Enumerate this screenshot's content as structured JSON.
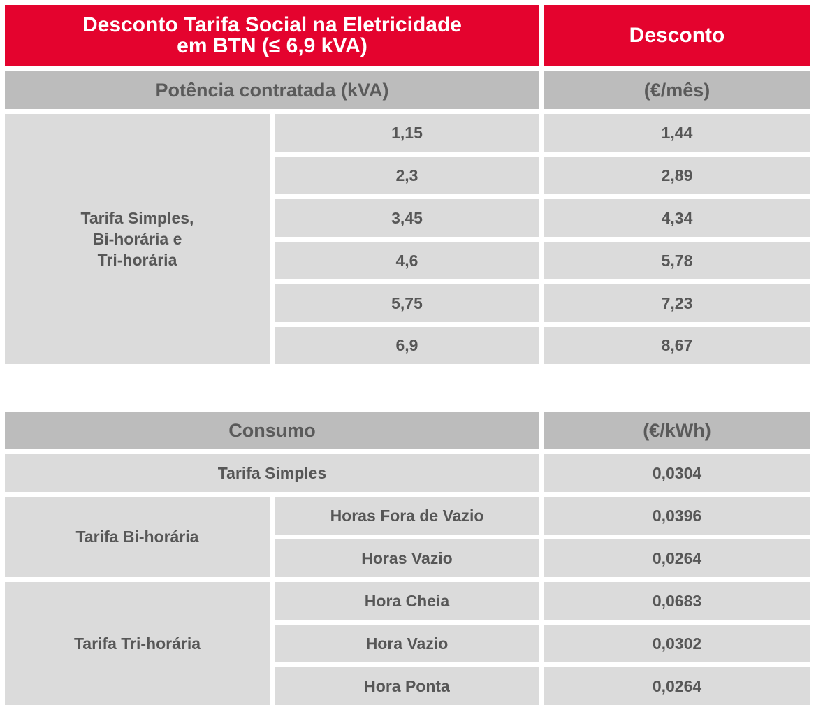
{
  "title": {
    "line1": "Desconto Tarifa Social na Eletricidade",
    "line2": "em BTN (≤ 6,9 kVA)",
    "discount_label": "Desconto"
  },
  "power_table": {
    "header_left": "Potência contratada (kVA)",
    "header_right": "(€/mês)",
    "group_label": {
      "line1": "Tarifa Simples,",
      "line2": "Bi-horária e",
      "line3": "Tri-horária"
    },
    "rows": [
      {
        "power": "1,15",
        "discount": "1,44"
      },
      {
        "power": "2,3",
        "discount": "2,89"
      },
      {
        "power": "3,45",
        "discount": "4,34"
      },
      {
        "power": "4,6",
        "discount": "5,78"
      },
      {
        "power": "5,75",
        "discount": "7,23"
      },
      {
        "power": "6,9",
        "discount": "8,67"
      }
    ]
  },
  "consumption_table": {
    "header_left": "Consumo",
    "header_right": "(€/kWh)",
    "simple": {
      "label": "Tarifa Simples",
      "value": "0,0304"
    },
    "bi": {
      "label": "Tarifa Bi-horária",
      "rows": [
        {
          "period": "Horas Fora de Vazio",
          "value": "0,0396"
        },
        {
          "period": "Horas Vazio",
          "value": "0,0264"
        }
      ]
    },
    "tri": {
      "label": "Tarifa Tri-horária",
      "rows": [
        {
          "period": "Hora Cheia",
          "value": "0,0683"
        },
        {
          "period": "Hora Vazio",
          "value": "0,0302"
        },
        {
          "period": "Hora Ponta",
          "value": "0,0264"
        }
      ]
    }
  },
  "colors": {
    "brand_red": "#e4032e",
    "header_gray": "#bcbcbc",
    "cell_gray": "#dbdbdb",
    "text_gray": "#575757"
  }
}
